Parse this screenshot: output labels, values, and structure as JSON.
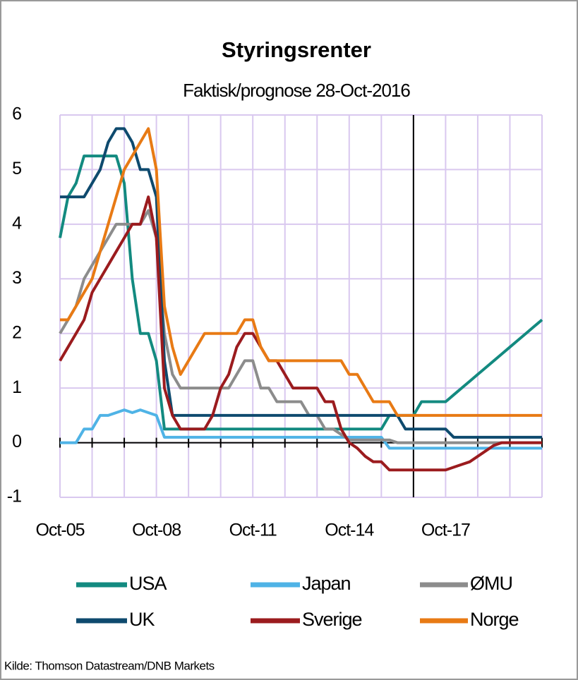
{
  "chart_data": {
    "type": "line",
    "title": "Styringsrenter",
    "subtitle": "Faktisk/prognose 28-Oct-2016",
    "source": "Kilde: Thomson  Datastream/DNB Markets",
    "x": [
      "Oct-05",
      "Jan-06",
      "Apr-06",
      "Jul-06",
      "Oct-06",
      "Jan-07",
      "Apr-07",
      "Jul-07",
      "Oct-07",
      "Jan-08",
      "Apr-08",
      "Jul-08",
      "Oct-08",
      "Jan-09",
      "Apr-09",
      "Jul-09",
      "Oct-09",
      "Jan-10",
      "Apr-10",
      "Jul-10",
      "Oct-10",
      "Jan-11",
      "Apr-11",
      "Jul-11",
      "Oct-11",
      "Jan-12",
      "Apr-12",
      "Jul-12",
      "Oct-12",
      "Jan-13",
      "Apr-13",
      "Jul-13",
      "Oct-13",
      "Jan-14",
      "Apr-14",
      "Jul-14",
      "Oct-14",
      "Jan-15",
      "Apr-15",
      "Jul-15",
      "Oct-15",
      "Jan-16",
      "Apr-16",
      "Jul-16",
      "Oct-16",
      "Jan-17",
      "Apr-17",
      "Jul-17",
      "Oct-17",
      "Jan-18",
      "Apr-18",
      "Jul-18",
      "Oct-18",
      "Jan-19",
      "Apr-19",
      "Jul-19",
      "Oct-19",
      "Jan-20",
      "Apr-20",
      "Jul-20",
      "Oct-20"
    ],
    "xticks": [
      "Oct-05",
      "Oct-08",
      "Oct-11",
      "Oct-14",
      "Oct-17"
    ],
    "forecast_line": "Oct-16",
    "ylim": [
      -1,
      6
    ],
    "yticks": [
      -1,
      0,
      1,
      2,
      3,
      4,
      5,
      6
    ],
    "grid": true,
    "series": [
      {
        "name": "USA",
        "color": "#138a80",
        "values": [
          3.75,
          4.5,
          4.75,
          5.25,
          5.25,
          5.25,
          5.25,
          5.25,
          4.75,
          3.0,
          2.0,
          2.0,
          1.5,
          0.25,
          0.25,
          0.25,
          0.25,
          0.25,
          0.25,
          0.25,
          0.25,
          0.25,
          0.25,
          0.25,
          0.25,
          0.25,
          0.25,
          0.25,
          0.25,
          0.25,
          0.25,
          0.25,
          0.25,
          0.25,
          0.25,
          0.25,
          0.25,
          0.25,
          0.25,
          0.25,
          0.25,
          0.5,
          0.5,
          0.5,
          0.5,
          0.75,
          0.75,
          0.75,
          0.75,
          0.875,
          1.0,
          1.125,
          1.25,
          1.375,
          1.5,
          1.625,
          1.75,
          1.875,
          2.0,
          2.125,
          2.25
        ]
      },
      {
        "name": "Japan",
        "color": "#4fb3e6",
        "values": [
          0,
          0,
          0,
          0.25,
          0.25,
          0.5,
          0.5,
          0.55,
          0.6,
          0.55,
          0.6,
          0.55,
          0.5,
          0.1,
          0.1,
          0.1,
          0.1,
          0.1,
          0.1,
          0.1,
          0.1,
          0.1,
          0.1,
          0.1,
          0.1,
          0.1,
          0.1,
          0.1,
          0.1,
          0.1,
          0.1,
          0.1,
          0.1,
          0.1,
          0.1,
          0.1,
          0.1,
          0.1,
          0.1,
          0.1,
          0.1,
          -0.1,
          -0.1,
          -0.1,
          -0.1,
          -0.1,
          -0.1,
          -0.1,
          -0.1,
          -0.1,
          -0.1,
          -0.1,
          -0.1,
          -0.1,
          -0.1,
          -0.1,
          -0.1,
          -0.1,
          -0.1,
          -0.1,
          -0.1
        ]
      },
      {
        "name": "ØMU",
        "color": "#8c8c8c",
        "values": [
          2.0,
          2.25,
          2.5,
          3.0,
          3.25,
          3.5,
          3.75,
          4.0,
          4.0,
          4.0,
          4.0,
          4.25,
          3.75,
          2.0,
          1.25,
          1.0,
          1.0,
          1.0,
          1.0,
          1.0,
          1.0,
          1.0,
          1.25,
          1.5,
          1.5,
          1.0,
          1.0,
          0.75,
          0.75,
          0.75,
          0.75,
          0.5,
          0.5,
          0.25,
          0.25,
          0.15,
          0.05,
          0.05,
          0.05,
          0.05,
          0.05,
          0.05,
          0,
          0,
          0,
          0,
          0,
          0,
          0,
          0,
          0,
          0,
          0,
          0,
          0,
          0,
          0,
          0,
          0,
          0,
          0
        ]
      },
      {
        "name": "UK",
        "color": "#0e4a6e",
        "values": [
          4.5,
          4.5,
          4.5,
          4.5,
          4.75,
          5.0,
          5.5,
          5.75,
          5.75,
          5.5,
          5.0,
          5.0,
          4.5,
          1.5,
          0.5,
          0.5,
          0.5,
          0.5,
          0.5,
          0.5,
          0.5,
          0.5,
          0.5,
          0.5,
          0.5,
          0.5,
          0.5,
          0.5,
          0.5,
          0.5,
          0.5,
          0.5,
          0.5,
          0.5,
          0.5,
          0.5,
          0.5,
          0.5,
          0.5,
          0.5,
          0.5,
          0.5,
          0.5,
          0.25,
          0.25,
          0.25,
          0.25,
          0.25,
          0.25,
          0.1,
          0.1,
          0.1,
          0.1,
          0.1,
          0.1,
          0.1,
          0.1,
          0.1,
          0.1,
          0.1,
          0.1
        ]
      },
      {
        "name": "Sverige",
        "color": "#9b1b1e",
        "values": [
          1.5,
          1.75,
          2.0,
          2.25,
          2.75,
          3.0,
          3.25,
          3.5,
          3.75,
          4.0,
          4.0,
          4.5,
          3.75,
          1.0,
          0.5,
          0.25,
          0.25,
          0.25,
          0.25,
          0.5,
          1.0,
          1.25,
          1.75,
          2.0,
          2.0,
          1.75,
          1.5,
          1.5,
          1.25,
          1.0,
          1.0,
          1.0,
          1.0,
          0.75,
          0.75,
          0.25,
          0.0,
          -0.1,
          -0.25,
          -0.35,
          -0.35,
          -0.5,
          -0.5,
          -0.5,
          -0.5,
          -0.5,
          -0.5,
          -0.5,
          -0.5,
          -0.45,
          -0.4,
          -0.35,
          -0.25,
          -0.15,
          -0.05,
          0,
          0,
          0,
          0,
          0,
          0
        ]
      },
      {
        "name": "Norge",
        "color": "#e87a14",
        "values": [
          2.25,
          2.25,
          2.5,
          2.75,
          3.0,
          3.5,
          4.0,
          4.5,
          5.0,
          5.25,
          5.5,
          5.75,
          5.0,
          2.5,
          1.75,
          1.25,
          1.5,
          1.75,
          2.0,
          2.0,
          2.0,
          2.0,
          2.0,
          2.25,
          2.25,
          1.75,
          1.5,
          1.5,
          1.5,
          1.5,
          1.5,
          1.5,
          1.5,
          1.5,
          1.5,
          1.5,
          1.25,
          1.25,
          1.0,
          0.75,
          0.75,
          0.75,
          0.5,
          0.5,
          0.5,
          0.5,
          0.5,
          0.5,
          0.5,
          0.5,
          0.5,
          0.5,
          0.5,
          0.5,
          0.5,
          0.5,
          0.5,
          0.5,
          0.5,
          0.5,
          0.5
        ]
      }
    ]
  }
}
